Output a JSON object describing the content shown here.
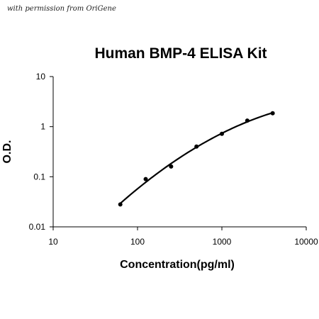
{
  "watermark": "with permission from OriGene",
  "chart_data": {
    "type": "scatter",
    "title": "Human BMP-4 ELISA Kit",
    "xlabel": "Concentration(pg/ml)",
    "ylabel": "O.D.",
    "xscale": "log",
    "yscale": "log",
    "xlim": [
      10,
      10000
    ],
    "ylim": [
      0.01,
      10
    ],
    "xticks": [
      10,
      100,
      1000,
      10000
    ],
    "xtick_labels": [
      "10",
      "100",
      "1000",
      "10000"
    ],
    "yticks": [
      0.01,
      0.1,
      1,
      10
    ],
    "ytick_labels": [
      "0.01",
      "0.1",
      "1",
      "10"
    ],
    "grid": false,
    "legend": "none",
    "marker_color": "#000000",
    "line_color": "#000000",
    "series": [
      {
        "x": [
          62.5,
          125,
          250,
          500,
          1000,
          2000,
          4000
        ],
        "y": [
          0.028,
          0.09,
          0.16,
          0.4,
          0.72,
          1.32,
          1.85
        ]
      }
    ]
  }
}
